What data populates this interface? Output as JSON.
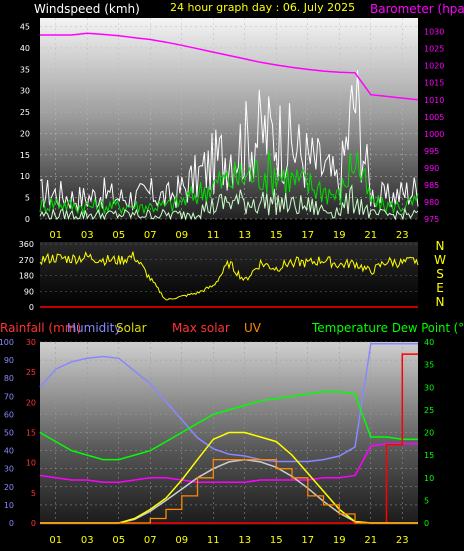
{
  "chart_data": [
    {
      "type": "line",
      "title": "24 hour graph day : 06. July 2025",
      "left_axis_label": "Windspeed (kmh)",
      "right_axis_label": "Barometer (hpa)",
      "left_ticks": [
        "0",
        "5",
        "10",
        "15",
        "20",
        "25",
        "30",
        "35",
        "40",
        "45"
      ],
      "right_ticks": [
        "975",
        "980",
        "985",
        "990",
        "995",
        "1000",
        "1005",
        "1010",
        "1015",
        "1020",
        "1025",
        "1030"
      ],
      "x_ticks": [
        "01",
        "03",
        "05",
        "07",
        "09",
        "11",
        "13",
        "15",
        "17",
        "19",
        "21",
        "23"
      ],
      "ylim_left": [
        0,
        47
      ],
      "ylim_right": [
        975,
        1034
      ],
      "hours": [
        0,
        1,
        2,
        3,
        4,
        5,
        6,
        7,
        8,
        9,
        10,
        11,
        12,
        13,
        14,
        15,
        16,
        17,
        18,
        19,
        20,
        21,
        22,
        23,
        24
      ],
      "series": [
        {
          "key": "gust",
          "color": "#ffffff",
          "values": [
            6,
            6,
            5,
            5,
            6,
            5,
            5,
            6,
            5,
            7,
            10,
            13,
            16,
            18,
            20,
            20,
            17,
            14,
            12,
            8,
            29,
            6,
            5,
            6,
            7
          ]
        },
        {
          "key": "speed",
          "color": "#00dd00",
          "values": [
            3,
            4,
            3,
            3,
            3,
            3,
            3,
            3,
            3,
            4,
            6,
            8,
            9,
            10,
            11,
            11,
            9,
            8,
            7,
            5,
            15,
            4,
            3,
            3,
            4
          ]
        },
        {
          "key": "average",
          "color": "#ccffcc",
          "values": [
            1,
            1,
            1,
            1,
            1,
            1,
            1,
            1,
            1,
            1,
            2,
            3,
            4,
            4,
            4,
            4,
            3,
            3,
            2,
            2,
            5,
            1,
            1,
            1,
            1
          ]
        },
        {
          "key": "barometer",
          "color": "#ff00ff",
          "values": [
            1029,
            1029,
            1029,
            1029.5,
            1029.2,
            1028.8,
            1028.2,
            1027.7,
            1026.9,
            1026,
            1025,
            1024,
            1023,
            1022,
            1021,
            1020.2,
            1019.5,
            1018.9,
            1018.4,
            1018.1,
            1017.9,
            1011.5,
            1011,
            1010.5,
            1010
          ]
        }
      ]
    },
    {
      "type": "line",
      "left_ticks": [
        "0",
        "90",
        "180",
        "270",
        "360"
      ],
      "compass": [
        "N",
        "W",
        "S",
        "E",
        "N"
      ],
      "ylim": [
        0,
        360
      ],
      "hours": [
        0,
        1,
        2,
        3,
        4,
        5,
        6,
        7,
        8,
        9,
        10,
        11,
        12,
        13,
        14,
        15,
        16,
        17,
        18,
        19,
        20,
        21,
        22,
        23,
        24
      ],
      "series": [
        {
          "key": "direction",
          "color": "#ffff00",
          "values": [
            270,
            280,
            275,
            285,
            270,
            265,
            290,
            160,
            40,
            60,
            80,
            120,
            250,
            150,
            250,
            220,
            260,
            250,
            270,
            240,
            250,
            200,
            260,
            250,
            270
          ]
        }
      ]
    },
    {
      "type": "line",
      "labels": {
        "rainfall": "Rainfall (mm)",
        "humidity": "Humidity",
        "solar": "Solar",
        "max_solar": "Max solar",
        "uv": "UV",
        "temperature": "Temperature",
        "dew_point": "Dew Point (°"
      },
      "rain_ticks": [
        "0",
        "5",
        "10",
        "15",
        "20",
        "25",
        "30"
      ],
      "humidity_ticks": [
        "0",
        "10",
        "20",
        "30",
        "40",
        "50",
        "60",
        "70",
        "80",
        "90",
        "100"
      ],
      "temp_ticks": [
        "0",
        "5",
        "10",
        "15",
        "20",
        "25",
        "30",
        "35",
        "40"
      ],
      "x_ticks": [
        "01",
        "03",
        "05",
        "07",
        "09",
        "11",
        "13",
        "15",
        "17",
        "19",
        "21",
        "23"
      ],
      "hours": [
        0,
        1,
        2,
        3,
        4,
        5,
        6,
        7,
        8,
        9,
        10,
        11,
        12,
        13,
        14,
        15,
        16,
        17,
        18,
        19,
        20,
        21,
        22,
        23,
        24
      ],
      "series": [
        {
          "key": "humidity",
          "color": "#8888ff",
          "values": [
            75,
            85,
            89,
            91,
            92,
            91,
            84,
            77,
            67,
            57,
            47,
            41,
            38,
            37,
            35,
            34,
            34,
            34,
            35,
            37,
            42,
            99,
            99,
            99,
            99
          ]
        },
        {
          "key": "temperature",
          "color": "#00ff00",
          "values": [
            20,
            18,
            16,
            15,
            14,
            14,
            15,
            16,
            18,
            20,
            22,
            24,
            25,
            26,
            27,
            27.5,
            28,
            28.5,
            29,
            29,
            28.5,
            19,
            19,
            18.5,
            18.5
          ]
        },
        {
          "key": "dew_point",
          "color": "#ff00ff",
          "values": [
            10.5,
            10,
            9.5,
            9.5,
            9,
            9,
            9.5,
            10,
            10,
            9.5,
            9,
            9,
            9,
            9,
            9.5,
            9.5,
            9.5,
            9.5,
            10,
            10,
            10.5,
            17,
            17.5,
            17.5,
            17.5
          ]
        },
        {
          "key": "rainfall",
          "color": "#ff0000",
          "values": [
            0,
            0,
            0,
            0,
            0,
            0,
            0,
            0,
            0,
            0,
            0,
            0,
            0,
            0,
            0,
            0,
            0,
            0,
            0,
            0,
            0,
            0,
            13,
            28,
            28
          ]
        },
        {
          "key": "max_solar",
          "color": "#cccccc",
          "values": [
            0,
            0,
            0,
            0,
            0,
            0,
            0.8,
            2.6,
            5,
            7.5,
            10,
            12,
            13.5,
            14,
            13.5,
            12.3,
            10.3,
            7.7,
            4.8,
            2.2,
            0.3,
            0,
            0,
            0,
            0
          ]
        },
        {
          "key": "solar",
          "color": "#ffff00",
          "values": [
            0,
            0,
            0,
            0,
            0,
            0,
            1,
            3,
            5.5,
            9.5,
            14,
            18.5,
            20,
            20,
            19,
            18,
            15,
            11,
            7,
            3,
            0.3,
            0,
            0,
            0,
            0
          ]
        },
        {
          "key": "uv",
          "color": "#ff8800",
          "values": [
            0,
            0,
            0,
            0,
            0,
            0,
            0,
            0.5,
            1.5,
            3,
            5,
            7,
            7,
            7,
            7,
            6,
            5,
            3,
            2,
            1,
            0,
            0,
            0,
            0,
            0
          ]
        }
      ]
    }
  ]
}
